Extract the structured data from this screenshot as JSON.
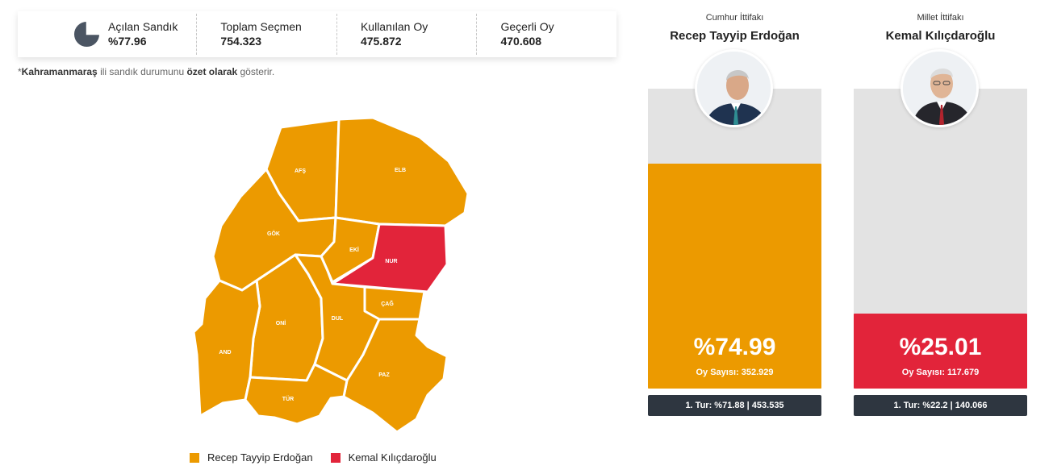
{
  "stats": {
    "opened_label": "Açılan Sandık",
    "opened_value": "%77.96",
    "voters_label": "Toplam Seçmen",
    "voters_value": "754.323",
    "used_label": "Kullanılan Oy",
    "used_value": "475.872",
    "valid_label": "Geçerli Oy",
    "valid_value": "470.608",
    "opened_fraction": 0.7796
  },
  "note": {
    "star": "*",
    "city": "Kahramanmaraş",
    "mid": " ili sandık durumunu ",
    "bold": "özet olarak",
    "end": " gösterir."
  },
  "map": {
    "districts": [
      {
        "id": "afs",
        "label": "AFŞ",
        "winner": "erdogan"
      },
      {
        "id": "elb",
        "label": "ELB",
        "winner": "erdogan"
      },
      {
        "id": "gok",
        "label": "GÖK",
        "winner": "erdogan"
      },
      {
        "id": "eki",
        "label": "EKİ",
        "winner": "erdogan"
      },
      {
        "id": "nur",
        "label": "NUR",
        "winner": "kilicdaroglu"
      },
      {
        "id": "cag",
        "label": "ÇAĞ",
        "winner": "erdogan"
      },
      {
        "id": "oni",
        "label": "ONİ",
        "winner": "erdogan"
      },
      {
        "id": "dul",
        "label": "DUL",
        "winner": "erdogan"
      },
      {
        "id": "and",
        "label": "AND",
        "winner": "erdogan"
      },
      {
        "id": "paz",
        "label": "PAZ",
        "winner": "erdogan"
      },
      {
        "id": "tur",
        "label": "TÜR",
        "winner": "erdogan"
      }
    ]
  },
  "legend": {
    "erdogan": "Recep Tayyip Erdoğan",
    "kilicdaroglu": "Kemal Kılıçdaroğlu"
  },
  "colors": {
    "erdogan": "#ec9a00",
    "kilicdaroglu": "#e2243a",
    "bar_bg": "#e3e3e3",
    "round_bg": "#2e3640",
    "pie": "#4b5563"
  },
  "candidates": [
    {
      "alliance": "Cumhur İttifakı",
      "name": "Recep Tayyip Erdoğan",
      "percent": "%74.99",
      "percent_value": 74.99,
      "votes": "Oy Sayısı: 352.929",
      "round1": "1. Tur: %71.88 | 453.535",
      "color_key": "erdogan"
    },
    {
      "alliance": "Millet İttifakı",
      "name": "Kemal Kılıçdaroğlu",
      "percent": "%25.01",
      "percent_value": 25.01,
      "votes": "Oy Sayısı: 117.679",
      "round1": "1. Tur: %22.2 | 140.066",
      "color_key": "kilicdaroglu"
    }
  ]
}
